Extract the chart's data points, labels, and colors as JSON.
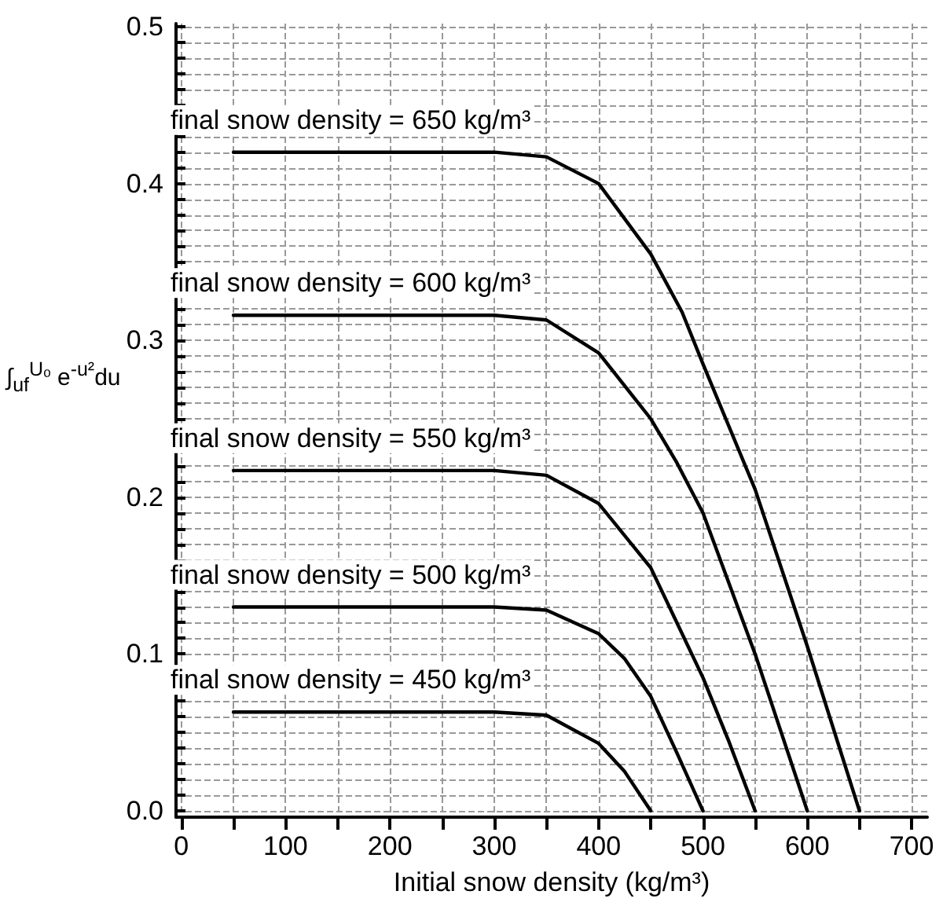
{
  "chart_data": {
    "type": "line",
    "xlabel": "Initial snow density (kg/m³)",
    "ylabel": "∫$_{uf}$$^{Uₒ}$ e$^{-u²}$du",
    "xlim": [
      -5,
      715
    ],
    "ylim": [
      -0.004,
      0.502
    ],
    "xticks": [
      0,
      {
        "value": 50,
        "label": null
      },
      100,
      {
        "value": 150,
        "label": null
      },
      200,
      {
        "value": 250,
        "label": null
      },
      300,
      {
        "value": 350,
        "label": null
      },
      400,
      {
        "value": 450,
        "label": null
      },
      500,
      {
        "value": 550,
        "label": null
      },
      600,
      {
        "value": 650,
        "label": null
      },
      700
    ],
    "yticks": [
      {
        "value": 0,
        "label": "0.0"
      },
      {
        "value": 0.01,
        "label": null
      },
      {
        "value": 0.02,
        "label": null
      },
      {
        "value": 0.03,
        "label": null
      },
      {
        "value": 0.04,
        "label": null
      },
      {
        "value": 0.05,
        "label": null
      },
      {
        "value": 0.06,
        "label": null
      },
      {
        "value": 0.07,
        "label": null
      },
      {
        "value": 0.08,
        "label": null
      },
      {
        "value": 0.09,
        "label": null
      },
      {
        "value": 0.1,
        "label": "0.1"
      },
      {
        "value": 0.11,
        "label": null
      },
      {
        "value": 0.12,
        "label": null
      },
      {
        "value": 0.13,
        "label": null
      },
      {
        "value": 0.14,
        "label": null
      },
      {
        "value": 0.15,
        "label": null
      },
      {
        "value": 0.16,
        "label": null
      },
      {
        "value": 0.17,
        "label": null
      },
      {
        "value": 0.18,
        "label": null
      },
      {
        "value": 0.19,
        "label": null
      },
      {
        "value": 0.2,
        "label": "0.2"
      },
      {
        "value": 0.21,
        "label": null
      },
      {
        "value": 0.22,
        "label": null
      },
      {
        "value": 0.23,
        "label": null
      },
      {
        "value": 0.24,
        "label": null
      },
      {
        "value": 0.25,
        "label": null
      },
      {
        "value": 0.26,
        "label": null
      },
      {
        "value": 0.27,
        "label": null
      },
      {
        "value": 0.28,
        "label": null
      },
      {
        "value": 0.29,
        "label": null
      },
      {
        "value": 0.3,
        "label": "0.3"
      },
      {
        "value": 0.31,
        "label": null
      },
      {
        "value": 0.32,
        "label": null
      },
      {
        "value": 0.33,
        "label": null
      },
      {
        "value": 0.34,
        "label": null
      },
      {
        "value": 0.35,
        "label": null
      },
      {
        "value": 0.36,
        "label": null
      },
      {
        "value": 0.37,
        "label": null
      },
      {
        "value": 0.38,
        "label": null
      },
      {
        "value": 0.39,
        "label": null
      },
      {
        "value": 0.4,
        "label": "0.4"
      },
      {
        "value": 0.41,
        "label": null
      },
      {
        "value": 0.42,
        "label": null
      },
      {
        "value": 0.43,
        "label": null
      },
      {
        "value": 0.44,
        "label": null
      },
      {
        "value": 0.45,
        "label": null
      },
      {
        "value": 0.46,
        "label": null
      },
      {
        "value": 0.47,
        "label": null
      },
      {
        "value": 0.48,
        "label": null
      },
      {
        "value": 0.49,
        "label": null
      },
      {
        "value": 0.5,
        "label": "0.5"
      }
    ],
    "grid": true,
    "marker": "none",
    "line_style": "solid",
    "series": [
      {
        "name": "final snow density = 650 kg/m³",
        "color": "#000000",
        "x": [
          50,
          300,
          350,
          400,
          450,
          480,
          500,
          550,
          600,
          650
        ],
        "values": [
          0.42,
          0.42,
          0.417,
          0.4,
          0.355,
          0.318,
          0.285,
          0.205,
          0.105,
          0
        ]
      },
      {
        "name": "final snow density = 600 kg/m³",
        "color": "#000000",
        "x": [
          50,
          300,
          350,
          400,
          450,
          475,
          500,
          550,
          600
        ],
        "values": [
          0.316,
          0.316,
          0.313,
          0.292,
          0.25,
          0.222,
          0.19,
          0.1,
          0
        ]
      },
      {
        "name": "final snow density = 550 kg/m³",
        "color": "#000000",
        "x": [
          50,
          300,
          350,
          400,
          450,
          475,
          500,
          525,
          550
        ],
        "values": [
          0.217,
          0.217,
          0.214,
          0.196,
          0.155,
          0.12,
          0.085,
          0.044,
          0
        ]
      },
      {
        "name": "final snow density = 500 kg/m³",
        "color": "#000000",
        "x": [
          50,
          300,
          350,
          400,
          425,
          450,
          475,
          500
        ],
        "values": [
          0.13,
          0.13,
          0.128,
          0.113,
          0.097,
          0.073,
          0.037,
          0
        ]
      },
      {
        "name": "final snow density = 450 kg/m³",
        "color": "#000000",
        "x": [
          50,
          300,
          350,
          400,
          425,
          450
        ],
        "values": [
          0.063,
          0.063,
          0.061,
          0.043,
          0.025,
          0
        ]
      }
    ]
  }
}
